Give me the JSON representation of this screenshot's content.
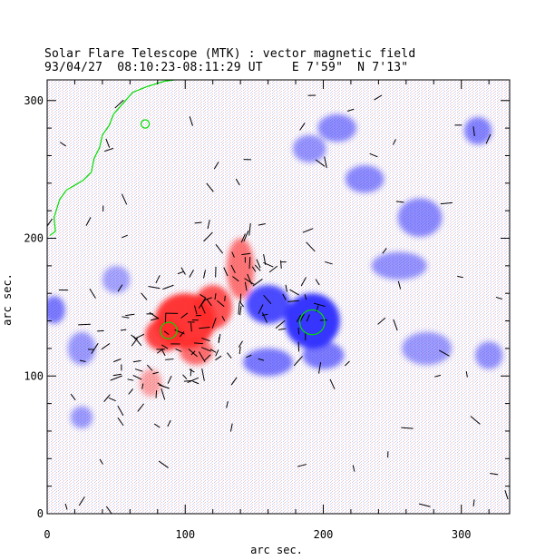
{
  "chart_data": {
    "type": "heatmap",
    "title": "Solar Flare Telescope (MTK) : vector magnetic field",
    "subtitle": "93/04/27  08:10:23-08:11:29 UT    E 7'59\"  N 7'13\"",
    "xlabel": "arc sec.",
    "ylabel": "arc sec.",
    "xlim": [
      0,
      335
    ],
    "ylim": [
      0,
      315
    ],
    "xticks": [
      0,
      100,
      200,
      300
    ],
    "yticks": [
      0,
      100,
      200,
      300
    ],
    "xtick_labels": [
      "0",
      "100",
      "200",
      "300"
    ],
    "ytick_labels": [
      "0",
      "100",
      "200",
      "300"
    ],
    "colors": {
      "positive_polarity": "#ff2a2a",
      "negative_polarity": "#2a2aff",
      "contour": "#00dd00",
      "vectors": "#000000"
    },
    "regions": [
      {
        "polarity": "positive",
        "x": 100,
        "y": 140,
        "rx": 22,
        "ry": 20,
        "strength": 1.0
      },
      {
        "polarity": "positive",
        "x": 85,
        "y": 130,
        "rx": 14,
        "ry": 12,
        "strength": 0.9
      },
      {
        "polarity": "positive",
        "x": 120,
        "y": 150,
        "rx": 14,
        "ry": 16,
        "strength": 0.8
      },
      {
        "polarity": "positive",
        "x": 140,
        "y": 178,
        "rx": 10,
        "ry": 22,
        "strength": 0.55
      },
      {
        "polarity": "positive",
        "x": 108,
        "y": 118,
        "rx": 12,
        "ry": 10,
        "strength": 0.6
      },
      {
        "polarity": "positive",
        "x": 75,
        "y": 95,
        "rx": 8,
        "ry": 10,
        "strength": 0.25
      },
      {
        "polarity": "negative",
        "x": 192,
        "y": 140,
        "rx": 20,
        "ry": 20,
        "strength": 1.0
      },
      {
        "polarity": "negative",
        "x": 160,
        "y": 152,
        "rx": 16,
        "ry": 14,
        "strength": 0.85
      },
      {
        "polarity": "negative",
        "x": 160,
        "y": 110,
        "rx": 18,
        "ry": 10,
        "strength": 0.5
      },
      {
        "polarity": "negative",
        "x": 200,
        "y": 115,
        "rx": 15,
        "ry": 10,
        "strength": 0.5
      },
      {
        "polarity": "negative",
        "x": 5,
        "y": 148,
        "rx": 8,
        "ry": 10,
        "strength": 0.5
      },
      {
        "polarity": "negative",
        "x": 230,
        "y": 243,
        "rx": 14,
        "ry": 10,
        "strength": 0.4
      },
      {
        "polarity": "negative",
        "x": 210,
        "y": 280,
        "rx": 14,
        "ry": 10,
        "strength": 0.4
      },
      {
        "polarity": "negative",
        "x": 312,
        "y": 278,
        "rx": 10,
        "ry": 10,
        "strength": 0.45
      },
      {
        "polarity": "negative",
        "x": 270,
        "y": 215,
        "rx": 16,
        "ry": 14,
        "strength": 0.4
      },
      {
        "polarity": "negative",
        "x": 255,
        "y": 180,
        "rx": 20,
        "ry": 10,
        "strength": 0.35
      },
      {
        "polarity": "negative",
        "x": 320,
        "y": 115,
        "rx": 10,
        "ry": 10,
        "strength": 0.35
      },
      {
        "polarity": "negative",
        "x": 25,
        "y": 120,
        "rx": 10,
        "ry": 12,
        "strength": 0.3
      },
      {
        "polarity": "negative",
        "x": 25,
        "y": 70,
        "rx": 8,
        "ry": 8,
        "strength": 0.3
      },
      {
        "polarity": "negative",
        "x": 50,
        "y": 170,
        "rx": 10,
        "ry": 10,
        "strength": 0.25
      },
      {
        "polarity": "negative",
        "x": 275,
        "y": 120,
        "rx": 18,
        "ry": 12,
        "strength": 0.3
      },
      {
        "polarity": "negative",
        "x": 190,
        "y": 265,
        "rx": 12,
        "ry": 10,
        "strength": 0.35
      }
    ],
    "contours": [
      {
        "name": "limb",
        "points": [
          [
            2,
            202
          ],
          [
            6,
            205
          ],
          [
            5,
            215
          ],
          [
            9,
            228
          ],
          [
            14,
            235
          ],
          [
            26,
            242
          ],
          [
            32,
            248
          ],
          [
            34,
            258
          ],
          [
            38,
            266
          ],
          [
            40,
            275
          ],
          [
            45,
            282
          ],
          [
            48,
            290
          ],
          [
            55,
            298
          ],
          [
            62,
            306
          ],
          [
            72,
            310
          ],
          [
            85,
            314
          ],
          [
            100,
            316
          ]
        ]
      },
      {
        "name": "limb-top",
        "points": [
          [
            100,
            316
          ],
          [
            110,
            316
          ],
          [
            118,
            318
          ],
          [
            125,
            320
          ]
        ]
      }
    ],
    "circles": [
      {
        "x": 88,
        "y": 133,
        "r": 6
      },
      {
        "x": 192,
        "y": 139,
        "r": 9
      },
      {
        "x": 71,
        "y": 283,
        "r": 3
      }
    ]
  }
}
